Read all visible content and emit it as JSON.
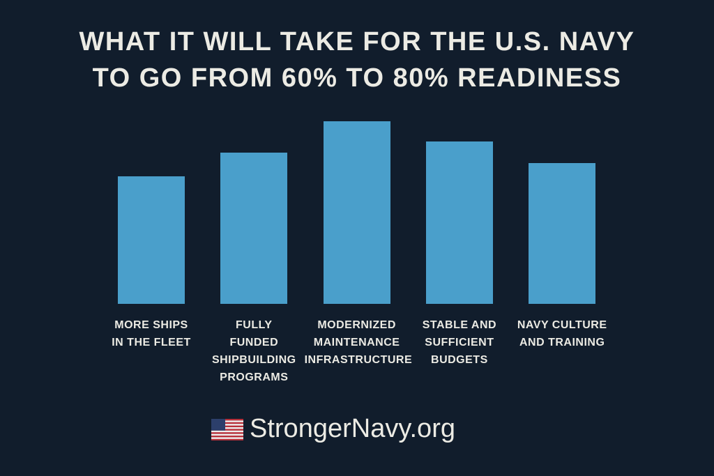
{
  "chart_data": {
    "type": "bar",
    "title": "WHAT IT WILL TAKE FOR THE U.S. NAVY\nTO GO FROM 60% TO 80% READINESS",
    "categories": [
      "MORE SHIPS\nIN THE FLEET",
      "FULLY\nFUNDED\nSHIPBUILDING\nPROGRAMS",
      "MODERNIZED\nMAINTENANCE\nINFRASTRUCTURE",
      "STABLE AND\nSUFFICIENT\nBUDGETS",
      "NAVY CULTURE\nAND TRAINING"
    ],
    "values": [
      70,
      83,
      100,
      89,
      77
    ],
    "color": "#4a9fcb",
    "ylim": [
      0,
      100
    ],
    "footer": "StrongerNavy.org"
  }
}
